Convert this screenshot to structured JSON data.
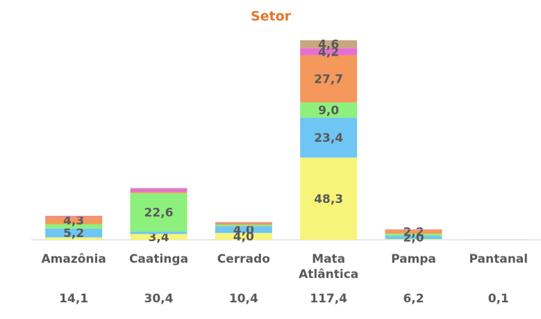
{
  "chart_data": {
    "type": "stacked-bar",
    "title": "Setor",
    "categories": [
      "Amazônia",
      "Caatinga",
      "Cerrado",
      "Mata Atlântica",
      "Pampa",
      "Pantanal"
    ],
    "totals": [
      "14,1",
      "30,4",
      "10,4",
      "117,4",
      "6,2",
      "0,1"
    ],
    "series": [
      {
        "color": "#f7f47a",
        "values": [
          1.4,
          3.4,
          4.0,
          48.3,
          0.4,
          0
        ],
        "value_labels": [
          null,
          "3,4",
          "4,0",
          "48,3",
          null,
          null
        ]
      },
      {
        "color": "#6fc5f3",
        "values": [
          5.2,
          1.4,
          4.0,
          23.4,
          2.0,
          0
        ],
        "value_labels": [
          "5,2",
          null,
          "4,0",
          "23,4",
          "2,0",
          null
        ]
      },
      {
        "color": "#8ef07c",
        "values": [
          2.6,
          22.6,
          0.8,
          9.0,
          1.2,
          0
        ],
        "value_labels": [
          null,
          "22,6",
          null,
          "9,0",
          null,
          null
        ]
      },
      {
        "color": "#f5985b",
        "values": [
          4.3,
          0.6,
          1.0,
          27.7,
          2.2,
          0
        ],
        "value_labels": [
          "4,3",
          null,
          null,
          "27,7",
          "2,2",
          null
        ]
      },
      {
        "color": "#e66fd0",
        "values": [
          0.4,
          2.0,
          0.2,
          4.2,
          0.2,
          0
        ],
        "value_labels": [
          null,
          null,
          null,
          "4,2",
          null,
          null
        ]
      },
      {
        "color": "#c9a67f",
        "values": [
          0.2,
          0.4,
          0.4,
          4.6,
          0.2,
          0.1
        ],
        "value_labels": [
          null,
          null,
          null,
          "4,6",
          null,
          null
        ]
      }
    ]
  }
}
